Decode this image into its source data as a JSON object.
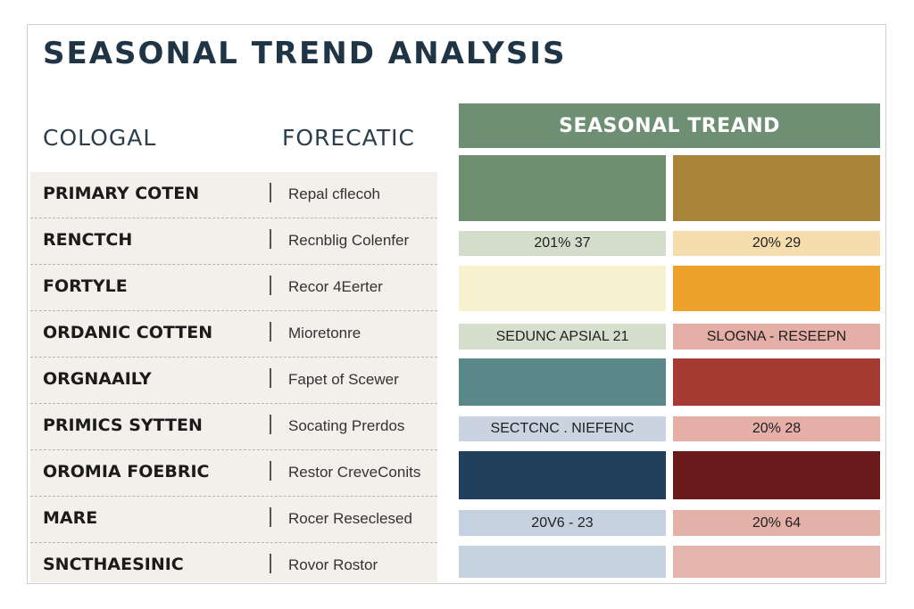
{
  "title": "SEASONAL TREND ANALYSIS",
  "left_headers": {
    "col1": "COLOGAL",
    "col2": "FORECATIC"
  },
  "rows": [
    {
      "name": "PRIMARY COTEN",
      "value": "Repal cflecoh"
    },
    {
      "name": "RENCTCH",
      "value": "Recnblig Colenfer"
    },
    {
      "name": "FORTYLE",
      "value": "Recor 4Eerter"
    },
    {
      "name": "ORDANIC COTTEN",
      "value": "Mioretonre"
    },
    {
      "name": "ORGNAAILY",
      "value": "Fapet of Scewer"
    },
    {
      "name": "PRIMICS SYTTEN",
      "value": "Socating Prerdos"
    },
    {
      "name": "OROMIA FOEBRIC",
      "value": "Restor CreveConits"
    },
    {
      "name": "MARE",
      "value": "Rocer Reseclesed"
    },
    {
      "name": "SNCTHAESINIC",
      "value": "Rovor Rostor"
    }
  ],
  "panel": {
    "header": "SEASONAL TREAND",
    "header_color": "#6e8f73",
    "left_column": [
      {
        "kind": "swatch",
        "color": "#6f9070"
      },
      {
        "kind": "label",
        "color": "#d4dccc",
        "text": "201%   37"
      },
      {
        "kind": "swatch",
        "color": "#f8f1cf"
      },
      {
        "kind": "label",
        "color": "#d6dfcd",
        "text": "SEDUNC  APSIAL  21"
      },
      {
        "kind": "swatch",
        "color": "#5a8787"
      },
      {
        "kind": "label",
        "color": "#c9d4e0",
        "text": "SECTCNC . NIEFENC"
      },
      {
        "kind": "swatch",
        "color": "#1f3f5a"
      },
      {
        "kind": "label",
        "color": "#c5d1de",
        "text": "20V6  -  23"
      },
      {
        "kind": "swatch",
        "color": "#c6d2de"
      }
    ],
    "right_column": [
      {
        "kind": "swatch",
        "color": "#a7843a"
      },
      {
        "kind": "label",
        "color": "#f6ddae",
        "text": "20%   29"
      },
      {
        "kind": "swatch",
        "color": "#eea22c"
      },
      {
        "kind": "label",
        "color": "#e5aea6",
        "text": "SLOGNA - RESEEPN"
      },
      {
        "kind": "swatch",
        "color": "#a53a33"
      },
      {
        "kind": "label",
        "color": "#e5aea6",
        "text": "20%   28"
      },
      {
        "kind": "swatch",
        "color": "#6a1a1a"
      },
      {
        "kind": "label",
        "color": "#e4b1a9",
        "text": "20%   64"
      },
      {
        "kind": "swatch",
        "color": "#e4b5ad"
      }
    ]
  }
}
